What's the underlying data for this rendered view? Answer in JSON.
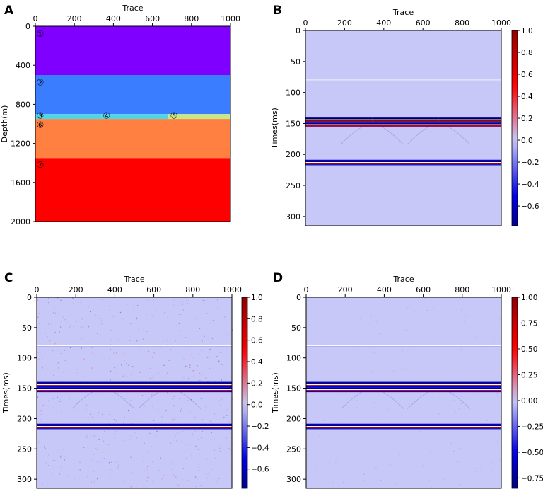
{
  "chart_data": [
    {
      "type": "heatmap",
      "panel_label": "A",
      "title": "",
      "xlabel": "Trace",
      "ylabel": "Depth(m)",
      "xlim": [
        0,
        1000
      ],
      "ylim": [
        0,
        2000
      ],
      "x_ticks": [
        0,
        200,
        400,
        600,
        800,
        1000
      ],
      "y_ticks": [
        0,
        400,
        800,
        1200,
        1600,
        2000
      ],
      "layers": [
        {
          "id": "1",
          "marker": "①",
          "top": 0,
          "bottom": 500,
          "x_start": 0,
          "x_end": 1000,
          "color": "#8000ff",
          "marker_trace": 25,
          "marker_depth": 80
        },
        {
          "id": "2",
          "marker": "②",
          "top": 500,
          "bottom": 900,
          "x_start": 0,
          "x_end": 1000,
          "color": "#3a7dff",
          "marker_trace": 25,
          "marker_depth": 575
        },
        {
          "id": "3",
          "marker": "③",
          "top": 900,
          "bottom": 950,
          "x_start": 0,
          "x_end": 340,
          "color": "#4dd6e8",
          "marker_trace": 25,
          "marker_depth": 917
        },
        {
          "id": "4",
          "marker": "④",
          "top": 900,
          "bottom": 950,
          "x_start": 340,
          "x_end": 680,
          "color": "#4dd6e8",
          "marker_trace": 365,
          "marker_depth": 917
        },
        {
          "id": "5",
          "marker": "⑤",
          "top": 900,
          "bottom": 950,
          "x_start": 680,
          "x_end": 1000,
          "color": "#c6e88a",
          "marker_trace": 710,
          "marker_depth": 917
        },
        {
          "id": "6",
          "marker": "⑥",
          "top": 950,
          "bottom": 1350,
          "x_start": 0,
          "x_end": 1000,
          "color": "#ff8040",
          "marker_trace": 25,
          "marker_depth": 1010
        },
        {
          "id": "7",
          "marker": "⑦",
          "top": 1350,
          "bottom": 2000,
          "x_start": 0,
          "x_end": 1000,
          "color": "#ff0000",
          "marker_trace": 25,
          "marker_depth": 1420
        }
      ]
    },
    {
      "type": "heatmap",
      "panel_label": "B",
      "xlabel": "Trace",
      "ylabel": "Times(ms)",
      "xlim": [
        0,
        1000
      ],
      "ylim": [
        0,
        315
      ],
      "x_ticks": [
        0,
        200,
        400,
        600,
        800,
        1000
      ],
      "y_ticks": [
        0,
        50,
        100,
        150,
        200,
        250,
        300
      ],
      "background_value": 0.0,
      "noise_level": 0,
      "colorbar": {
        "min": -0.78,
        "max": 1.0,
        "ticks": [
          1.0,
          0.8,
          0.6,
          0.4,
          0.2,
          0.0,
          -0.2,
          -0.4,
          -0.6
        ],
        "tick_labels": [
          "1.0",
          "0.8",
          "0.6",
          "0.4",
          "0.2",
          "0.0",
          "−0.2",
          "−0.4",
          "−0.6"
        ]
      },
      "reflections": [
        {
          "time": 80,
          "x_start": 0,
          "x_end": 1000,
          "amplitude": 0.1,
          "style": "faint"
        },
        {
          "time": 143,
          "x_start": 0,
          "x_end": 340,
          "amplitude": 1.0,
          "style": "strong"
        },
        {
          "time": 143,
          "x_start": 340,
          "x_end": 680,
          "amplitude": 1.0,
          "style": "strong"
        },
        {
          "time": 143,
          "x_start": 680,
          "x_end": 1000,
          "amplitude": 1.0,
          "style": "strong"
        },
        {
          "time": 151,
          "x_start": 0,
          "x_end": 1000,
          "amplitude": 0.8,
          "style": "strong"
        },
        {
          "time": 212,
          "x_start": 0,
          "x_end": 1000,
          "amplitude": 0.9,
          "style": "strong"
        }
      ],
      "diffractions": [
        {
          "apex_trace": 340,
          "apex_time": 151
        },
        {
          "apex_trace": 680,
          "apex_time": 151
        }
      ]
    },
    {
      "type": "heatmap",
      "panel_label": "C",
      "xlabel": "Trace",
      "ylabel": "Times(ms)",
      "xlim": [
        0,
        1000
      ],
      "ylim": [
        0,
        315
      ],
      "x_ticks": [
        0,
        200,
        400,
        600,
        800,
        1000
      ],
      "y_ticks": [
        0,
        50,
        100,
        150,
        200,
        250,
        300
      ],
      "background_value": 0.0,
      "noise_level": 0.08,
      "colorbar": {
        "min": -0.78,
        "max": 1.0,
        "ticks": [
          1.0,
          0.8,
          0.6,
          0.4,
          0.2,
          0.0,
          -0.2,
          -0.4,
          -0.6
        ],
        "tick_labels": [
          "1.0",
          "0.8",
          "0.6",
          "0.4",
          "0.2",
          "0.0",
          "−0.2",
          "−0.4",
          "−0.6"
        ]
      },
      "reflections": [
        {
          "time": 80,
          "x_start": 0,
          "x_end": 1000,
          "amplitude": 0.1,
          "style": "faint"
        },
        {
          "time": 143,
          "x_start": 0,
          "x_end": 1000,
          "amplitude": 1.0,
          "style": "strong"
        },
        {
          "time": 151,
          "x_start": 0,
          "x_end": 1000,
          "amplitude": 0.8,
          "style": "strong"
        },
        {
          "time": 212,
          "x_start": 0,
          "x_end": 1000,
          "amplitude": 0.9,
          "style": "strong"
        }
      ],
      "diffractions": [
        {
          "apex_trace": 340,
          "apex_time": 151
        },
        {
          "apex_trace": 680,
          "apex_time": 151
        }
      ]
    },
    {
      "type": "heatmap",
      "panel_label": "D",
      "xlabel": "Trace",
      "ylabel": "Times(ms)",
      "xlim": [
        0,
        1000
      ],
      "ylim": [
        0,
        315
      ],
      "x_ticks": [
        0,
        200,
        400,
        600,
        800,
        1000
      ],
      "y_ticks": [
        0,
        50,
        100,
        150,
        200,
        250,
        300
      ],
      "background_value": 0.0,
      "noise_level": 0.03,
      "colorbar": {
        "min": -0.85,
        "max": 1.0,
        "ticks": [
          1.0,
          0.75,
          0.5,
          0.25,
          0.0,
          -0.25,
          -0.5,
          -0.75
        ],
        "tick_labels": [
          "1.00",
          "0.75",
          "0.50",
          "0.25",
          "0.00",
          "−0.25",
          "−0.50",
          "−0.75"
        ]
      },
      "reflections": [
        {
          "time": 80,
          "x_start": 0,
          "x_end": 1000,
          "amplitude": 0.1,
          "style": "faint"
        },
        {
          "time": 143,
          "x_start": 0,
          "x_end": 1000,
          "amplitude": 1.0,
          "style": "strong"
        },
        {
          "time": 151,
          "x_start": 0,
          "x_end": 1000,
          "amplitude": 0.8,
          "style": "strong"
        },
        {
          "time": 212,
          "x_start": 0,
          "x_end": 1000,
          "amplitude": 0.9,
          "style": "strong"
        }
      ],
      "diffractions": [
        {
          "apex_trace": 340,
          "apex_time": 151
        },
        {
          "apex_trace": 680,
          "apex_time": 151
        }
      ]
    }
  ],
  "colors": {
    "seismic_positive": "#c00000",
    "seismic_negative": "#000080",
    "seismic_background": "#c8c8f8"
  }
}
